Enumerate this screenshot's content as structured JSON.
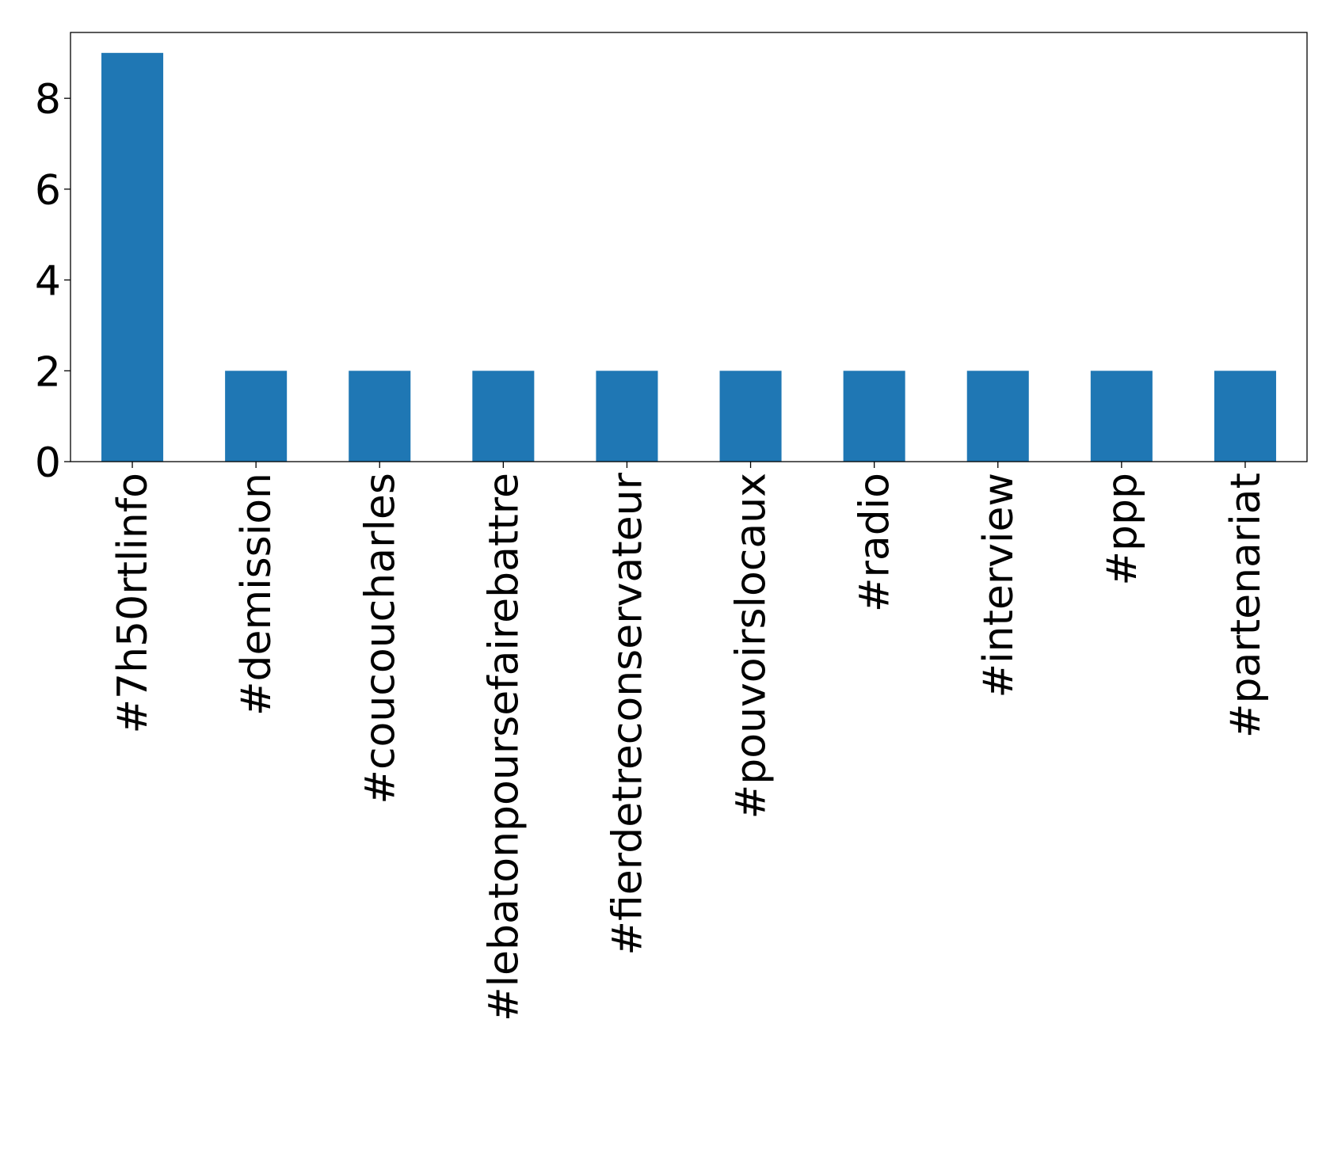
{
  "chart_data": {
    "type": "bar",
    "title": "",
    "xlabel": "",
    "ylabel": "",
    "categories": [
      "#7h50rtlinfo",
      "#demission",
      "#coucoucharles",
      "#lebatonpoursefairebattre",
      "#fierdetreconservateur",
      "#pouvoirslocaux",
      "#radio",
      "#interview",
      "#ppp",
      "#partenariat"
    ],
    "values": [
      9,
      2,
      2,
      2,
      2,
      2,
      2,
      2,
      2,
      2
    ],
    "ylim": [
      0,
      9.45
    ],
    "yticks": [
      0,
      2,
      4,
      6,
      8
    ],
    "bar_color": "#1f77b4",
    "grid": false,
    "legend": "none"
  }
}
